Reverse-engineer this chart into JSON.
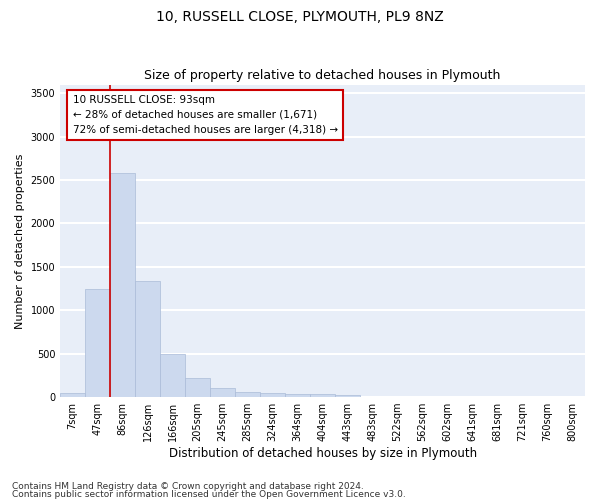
{
  "title": "10, RUSSELL CLOSE, PLYMOUTH, PL9 8NZ",
  "subtitle": "Size of property relative to detached houses in Plymouth",
  "xlabel": "Distribution of detached houses by size in Plymouth",
  "ylabel": "Number of detached properties",
  "categories": [
    "7sqm",
    "47sqm",
    "86sqm",
    "126sqm",
    "166sqm",
    "205sqm",
    "245sqm",
    "285sqm",
    "324sqm",
    "364sqm",
    "404sqm",
    "443sqm",
    "483sqm",
    "522sqm",
    "562sqm",
    "602sqm",
    "641sqm",
    "681sqm",
    "721sqm",
    "760sqm",
    "800sqm"
  ],
  "values": [
    50,
    1240,
    2580,
    1340,
    495,
    220,
    110,
    55,
    50,
    30,
    30,
    20,
    0,
    0,
    0,
    0,
    0,
    0,
    0,
    0,
    0
  ],
  "bar_color": "#ccd9ee",
  "bar_edge_color": "#aabbd8",
  "annotation_text": "10 RUSSELL CLOSE: 93sqm\n← 28% of detached houses are smaller (1,671)\n72% of semi-detached houses are larger (4,318) →",
  "annotation_box_color": "#ffffff",
  "annotation_box_edge_color": "#cc0000",
  "vline_color": "#cc0000",
  "ylim": [
    0,
    3600
  ],
  "yticks": [
    0,
    500,
    1000,
    1500,
    2000,
    2500,
    3000,
    3500
  ],
  "background_color": "#e8eef8",
  "grid_color": "#ffffff",
  "footer_line1": "Contains HM Land Registry data © Crown copyright and database right 2024.",
  "footer_line2": "Contains public sector information licensed under the Open Government Licence v3.0.",
  "title_fontsize": 10,
  "subtitle_fontsize": 9,
  "xlabel_fontsize": 8.5,
  "ylabel_fontsize": 8,
  "tick_fontsize": 7,
  "footer_fontsize": 6.5,
  "annot_fontsize": 7.5
}
